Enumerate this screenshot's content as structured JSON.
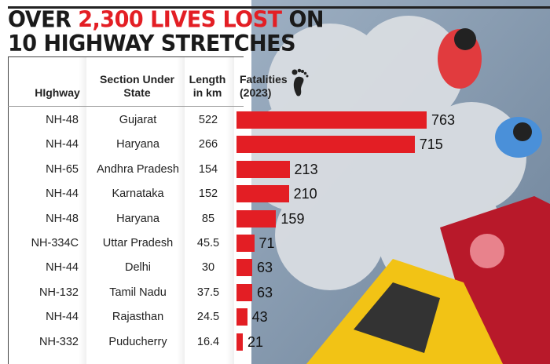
{
  "title": {
    "part1": "OVER ",
    "highlight": "2,300 LIVES LOST",
    "part2": " ON",
    "line2": "10 HIGHWAY STRETCHES"
  },
  "colors": {
    "bar": "#e31e24",
    "accent": "#e31e24"
  },
  "chart_data": {
    "type": "table",
    "title": "OVER 2,300 LIVES LOST ON 10 HIGHWAY STRETCHES",
    "columns": [
      "HIghway",
      "Section Under State",
      "Length in km",
      "Fatalities (2023)"
    ],
    "icon": "footprint-icon",
    "rows": [
      {
        "highway": "NH-48",
        "state": "Gujarat",
        "length": "522",
        "fatalities": 763
      },
      {
        "highway": "NH-44",
        "state": "Haryana",
        "length": "266",
        "fatalities": 715
      },
      {
        "highway": "NH-65",
        "state": "Andhra Pradesh",
        "length": "154",
        "fatalities": 213
      },
      {
        "highway": "NH-44",
        "state": "Karnataka",
        "length": "152",
        "fatalities": 210
      },
      {
        "highway": "NH-48",
        "state": "Haryana",
        "length": "85",
        "fatalities": 159
      },
      {
        "highway": "NH-334C",
        "state": "Uttar Pradesh",
        "length": "45.5",
        "fatalities": 71
      },
      {
        "highway": "NH-44",
        "state": "Delhi",
        "length": "30",
        "fatalities": 63
      },
      {
        "highway": "NH-132",
        "state": "Tamil Nadu",
        "length": "37.5",
        "fatalities": 63
      },
      {
        "highway": "NH-44",
        "state": "Rajasthan",
        "length": "24.5",
        "fatalities": 43
      },
      {
        "highway": "NH-332",
        "state": "Puducherry",
        "length": "16.4",
        "fatalities": 21
      }
    ],
    "xlim": [
      0,
      763
    ]
  }
}
